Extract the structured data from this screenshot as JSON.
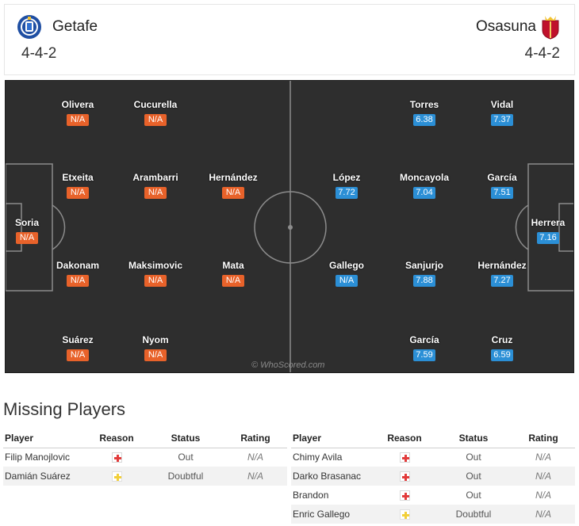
{
  "header": {
    "home": {
      "name": "Getafe",
      "formation": "4-4-2",
      "crest_icon": "getafe-crest-icon",
      "color": "#1f4fa3"
    },
    "away": {
      "name": "Osasuna",
      "formation": "4-4-2",
      "crest_icon": "osasuna-crest-icon",
      "color": "#c0112b"
    }
  },
  "pitch": {
    "watermark": "© WhoScored.com",
    "home_players": [
      {
        "name": "Soria",
        "rating": "N/A"
      },
      {
        "name": "Olivera",
        "rating": "N/A"
      },
      {
        "name": "Etxeita",
        "rating": "N/A"
      },
      {
        "name": "Dakonam",
        "rating": "N/A"
      },
      {
        "name": "Suárez",
        "rating": "N/A"
      },
      {
        "name": "Cucurella",
        "rating": "N/A"
      },
      {
        "name": "Arambarri",
        "rating": "N/A"
      },
      {
        "name": "Maksimovic",
        "rating": "N/A"
      },
      {
        "name": "Nyom",
        "rating": "N/A"
      },
      {
        "name": "Hernández",
        "rating": "N/A"
      },
      {
        "name": "Mata",
        "rating": "N/A"
      }
    ],
    "away_players": [
      {
        "name": "Herrera",
        "rating": "7.16"
      },
      {
        "name": "Vidal",
        "rating": "7.37"
      },
      {
        "name": "García",
        "rating": "7.51"
      },
      {
        "name": "Hernández",
        "rating": "7.27"
      },
      {
        "name": "Cruz",
        "rating": "6.59"
      },
      {
        "name": "Torres",
        "rating": "6.38"
      },
      {
        "name": "Moncayola",
        "rating": "7.04"
      },
      {
        "name": "Sanjurjo",
        "rating": "7.88"
      },
      {
        "name": "García",
        "rating": "7.59"
      },
      {
        "name": "López",
        "rating": "7.72"
      },
      {
        "name": "Gallego",
        "rating": "N/A"
      }
    ]
  },
  "missing": {
    "title": "Missing Players",
    "columns": {
      "player": "Player",
      "reason": "Reason",
      "status": "Status",
      "rating": "Rating"
    },
    "home_rows": [
      {
        "player": "Filip Manojlovic",
        "reason_icon": "injury-icon",
        "status": "Out",
        "rating": "N/A"
      },
      {
        "player": "Damián Suárez",
        "reason_icon": "doubtful-icon",
        "status": "Doubtful",
        "rating": "N/A"
      }
    ],
    "away_rows": [
      {
        "player": "Chimy Avila",
        "reason_icon": "injury-icon",
        "status": "Out",
        "rating": "N/A"
      },
      {
        "player": "Darko Brasanac",
        "reason_icon": "injury-icon",
        "status": "Out",
        "rating": "N/A"
      },
      {
        "player": "Brandon",
        "reason_icon": "injury-icon",
        "status": "Out",
        "rating": "N/A"
      },
      {
        "player": "Enric Gallego",
        "reason_icon": "doubtful-icon",
        "status": "Doubtful",
        "rating": "N/A"
      }
    ]
  }
}
